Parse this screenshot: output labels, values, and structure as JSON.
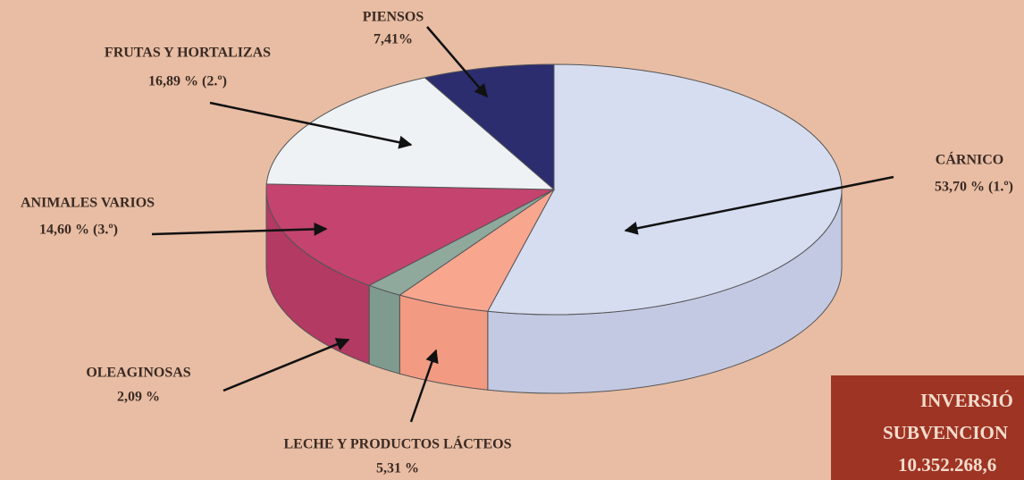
{
  "chart_data": {
    "type": "pie",
    "categories": [
      "CÁRNICO",
      "LECHE Y PRODUCTOS LÁCTEOS",
      "OLEAGINOSAS",
      "ANIMALES VARIOS",
      "FRUTAS Y HORTALIZAS",
      "PIENSOS"
    ],
    "values": [
      53.7,
      5.31,
      2.09,
      14.6,
      16.89,
      7.41
    ],
    "value_labels": [
      "53,70 % (1.º)",
      "5,31 %",
      "2,09 %",
      "14,60 %  (3.º)",
      "16,89 % (2.º)",
      "7,41%"
    ],
    "colors": [
      "#d6ddf1",
      "#f9a68f",
      "#8fa99d",
      "#c4436f",
      "#eef2f5",
      "#2c2d6f"
    ],
    "side_colors": [
      "#c3c9e2",
      "#f39a82",
      "#7f9a8e",
      "#b23a63",
      "#dde2e8",
      "#222359"
    ],
    "annotations": [
      "INVERSIÓ",
      "SUBVENCION",
      "10.352.268,6"
    ]
  }
}
